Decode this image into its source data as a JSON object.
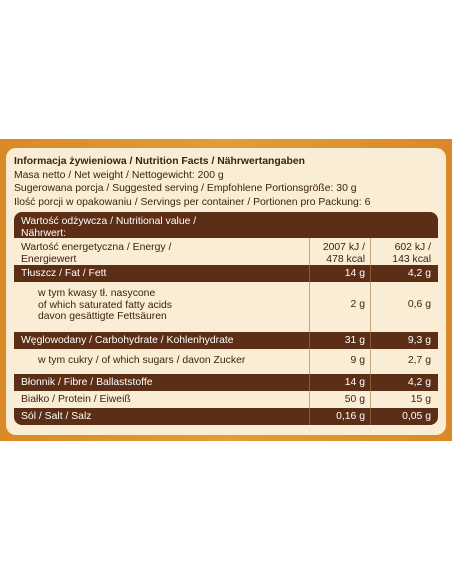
{
  "header": {
    "title": "Informacja żywieniowa / Nutrition Facts / Nährwertangaben",
    "lines": [
      "Masa netto / Net weight / Nettogewicht: 200 g",
      "Sugerowana porcja / Suggested serving / Empfohlene Portionsgröße: 30 g",
      "Ilość porcji w opakowaniu / Servings per container / Portionen pro Packung: 6"
    ]
  },
  "table": {
    "header": {
      "line1": "Wartość odżywcza / Nutritional value /",
      "line2": "Nährwert:"
    },
    "energy": {
      "label1": "Wartość energetyczna / Energy /",
      "label2": "Energiewert",
      "v1_line1": "2007 kJ /",
      "v1_line2": "478 kcal",
      "v2_line1": "602 kJ /",
      "v2_line2": "143 kcal"
    },
    "fat": {
      "label": "Tłuszcz / Fat / Fett",
      "v1": "14 g",
      "v2": "4,2 g"
    },
    "sat_fat": {
      "label1": "w tym kwasy tł. nasycone",
      "label2": "of which saturated fatty acids",
      "label3": "davon gesättigte Fettsäuren",
      "v1": "2 g",
      "v2": "0,6 g"
    },
    "carbs": {
      "label": "Węglowodany / Carbohydrate / Kohlenhydrate",
      "v1": "31 g",
      "v2": "9,3 g"
    },
    "sugars": {
      "label": "w tym cukry / of which sugars / davon Zucker",
      "v1": "9 g",
      "v2": "2,7 g"
    },
    "fibre": {
      "label": "Błonnik / Fibre / Ballaststoffe",
      "v1": "14 g",
      "v2": "4,2 g"
    },
    "protein": {
      "label": "Białko / Protein / Eiweiß",
      "v1": "50 g",
      "v2": "15 g"
    },
    "salt": {
      "label": "Sól / Salt / Salz",
      "v1": "0,16 g",
      "v2": "0,05 g"
    }
  },
  "colors": {
    "band": "#e0952f",
    "card": "#f9eed5",
    "dark_row": "#5c2e16",
    "text": "#3d2110"
  }
}
